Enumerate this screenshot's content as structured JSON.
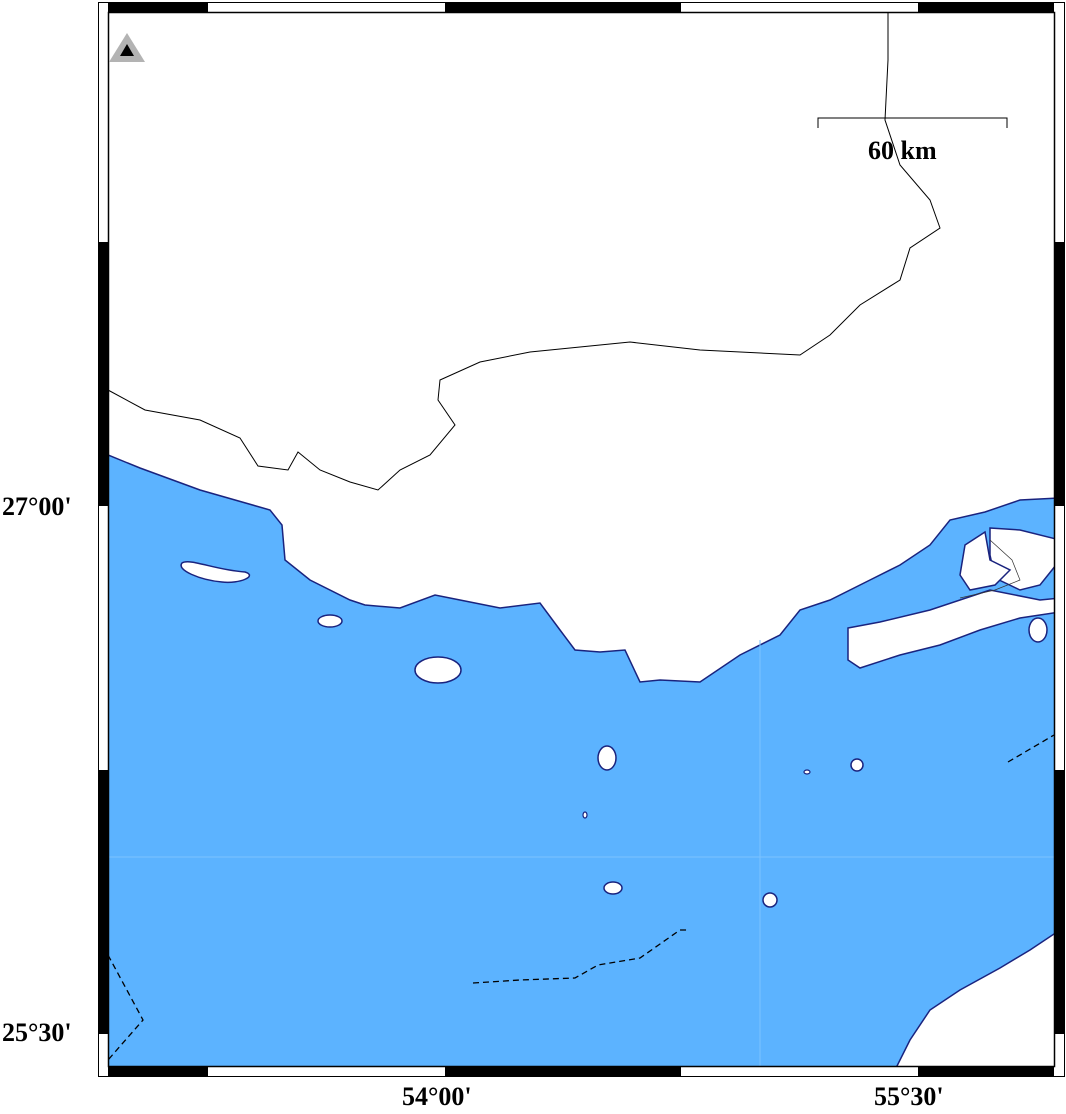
{
  "map": {
    "water_color": "#5cb3ff",
    "coast_color": "#1a237e",
    "land_color": "#ffffff",
    "lat_labels": [
      "27°00'",
      "25°30'"
    ],
    "lon_labels": [
      "54°00'",
      "55°30'"
    ],
    "scale_bar": {
      "label": "60 km"
    },
    "marker": {
      "icon": "station-triangle-icon"
    }
  }
}
